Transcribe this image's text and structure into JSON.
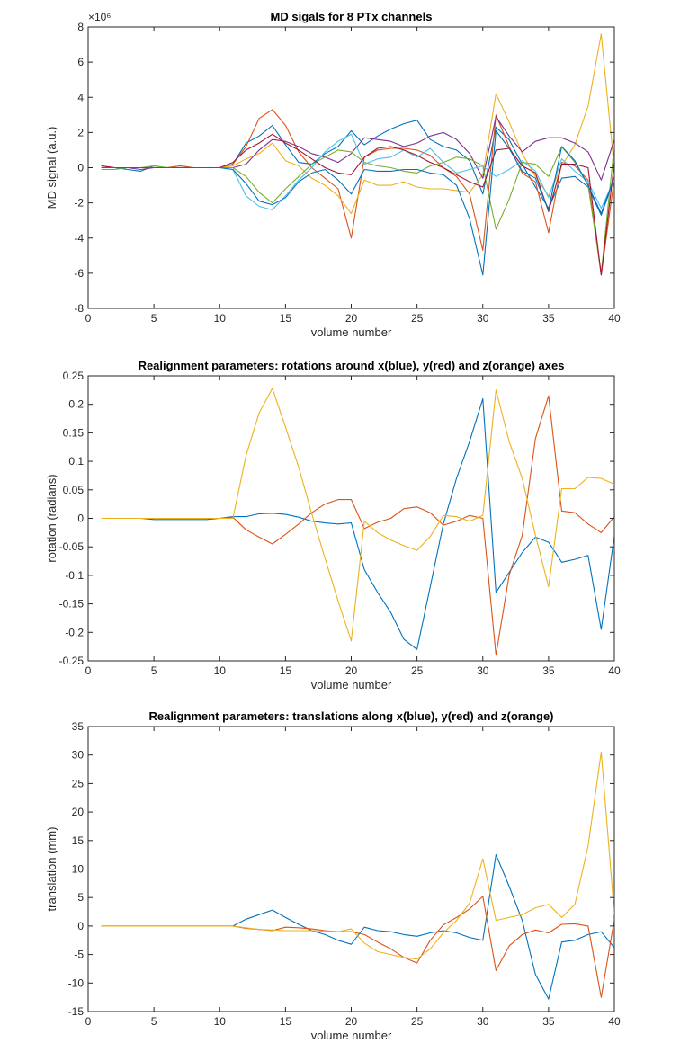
{
  "chart_data": [
    {
      "type": "line",
      "title": "MD sigals for 8 PTx channels",
      "xlabel": "volume number",
      "ylabel": "MD signal (a.u.)",
      "y_exponent_label": "×10⁶",
      "xlim": [
        0,
        40
      ],
      "ylim": [
        -8,
        8
      ],
      "xticks": [
        "0",
        "5",
        "10",
        "15",
        "20",
        "25",
        "30",
        "35",
        "40"
      ],
      "yticks": [
        "-8",
        "-6",
        "-4",
        "-2",
        "0",
        "2",
        "4",
        "6",
        "8"
      ],
      "grid": false,
      "x": [
        1,
        2,
        3,
        4,
        5,
        6,
        7,
        8,
        9,
        10,
        11,
        12,
        13,
        14,
        15,
        16,
        17,
        18,
        19,
        20,
        21,
        22,
        23,
        24,
        25,
        26,
        27,
        28,
        29,
        30,
        31,
        32,
        33,
        34,
        35,
        36,
        37,
        38,
        39,
        40
      ],
      "series": [
        {
          "color": "#0072BD",
          "values": [
            0.1,
            0.0,
            -0.1,
            -0.2,
            0.1,
            0.0,
            0.1,
            0.0,
            0.0,
            0.0,
            0.2,
            1.4,
            1.8,
            2.4,
            1.3,
            0.3,
            0.2,
            0.8,
            1.2,
            2.1,
            1.3,
            1.8,
            2.2,
            2.5,
            2.7,
            1.6,
            1.2,
            1.0,
            0.4,
            -1.5,
            2.3,
            1.6,
            0.2,
            -1.1,
            -2.3,
            -0.6,
            -0.5,
            -1.1,
            -2.7,
            -0.6
          ]
        },
        {
          "color": "#D95319",
          "values": [
            0.1,
            0.0,
            0.0,
            0.0,
            0.0,
            0.0,
            0.1,
            0.0,
            0.0,
            0.0,
            0.2,
            1.2,
            2.8,
            3.3,
            2.4,
            0.9,
            0.0,
            -0.6,
            -1.2,
            -4.0,
            0.6,
            1.0,
            1.1,
            1.1,
            1.0,
            0.7,
            0.0,
            -0.5,
            -1.5,
            -4.7,
            3.0,
            1.2,
            -0.3,
            -0.8,
            -3.7,
            0.3,
            0.1,
            -0.7,
            -6.1,
            -0.6
          ]
        },
        {
          "color": "#EDB120",
          "values": [
            0.0,
            0.0,
            0.0,
            0.0,
            0.1,
            0.0,
            0.0,
            0.0,
            0.0,
            0.0,
            0.1,
            0.5,
            0.8,
            1.4,
            0.4,
            0.1,
            -0.6,
            -1.0,
            -1.6,
            -2.6,
            -0.7,
            -1.0,
            -1.0,
            -0.8,
            -1.1,
            -1.2,
            -1.2,
            -1.3,
            -1.4,
            -0.4,
            4.2,
            2.6,
            0.8,
            -0.5,
            -1.6,
            0.1,
            1.3,
            3.5,
            7.6,
            -0.1
          ]
        },
        {
          "color": "#7E2F8E",
          "values": [
            0.0,
            0.0,
            0.0,
            -0.1,
            0.0,
            0.0,
            0.0,
            0.0,
            0.0,
            0.0,
            0.0,
            0.2,
            1.0,
            1.6,
            1.5,
            1.2,
            0.8,
            0.6,
            0.3,
            0.8,
            1.7,
            1.6,
            1.5,
            1.2,
            1.4,
            1.8,
            2.0,
            1.6,
            0.8,
            -0.6,
            2.9,
            1.8,
            0.9,
            1.5,
            1.7,
            1.7,
            1.4,
            0.9,
            -0.7,
            1.6
          ]
        },
        {
          "color": "#77AC30",
          "values": [
            -0.1,
            -0.1,
            0.0,
            0.0,
            0.1,
            0.0,
            0.0,
            0.0,
            0.0,
            0.0,
            0.0,
            -0.5,
            -1.4,
            -2.0,
            -1.2,
            -0.5,
            0.2,
            0.6,
            1.0,
            0.9,
            0.3,
            0.1,
            0.0,
            -0.2,
            -0.3,
            0.1,
            0.3,
            0.6,
            0.5,
            0.1,
            -3.5,
            -1.8,
            0.3,
            0.2,
            -0.5,
            1.2,
            0.3,
            -1.0,
            -6.0,
            1.3
          ]
        },
        {
          "color": "#4DBEEE",
          "values": [
            0.0,
            0.0,
            0.0,
            0.0,
            0.0,
            0.0,
            0.0,
            0.0,
            0.0,
            0.0,
            -0.1,
            -1.6,
            -2.2,
            -2.4,
            -1.6,
            -0.7,
            0.0,
            0.9,
            1.5,
            1.9,
            0.2,
            0.5,
            0.6,
            1.0,
            0.6,
            1.1,
            0.3,
            -0.3,
            -0.1,
            0.1,
            -0.5,
            -0.1,
            0.4,
            -0.2,
            -1.7,
            0.5,
            -0.2,
            -0.8,
            -2.3,
            -0.7
          ]
        },
        {
          "color": "#A2142F",
          "values": [
            0.1,
            0.0,
            0.0,
            0.0,
            0.0,
            0.0,
            0.0,
            0.0,
            0.0,
            0.0,
            0.3,
            1.0,
            1.4,
            1.9,
            1.4,
            1.0,
            0.5,
            0.0,
            -0.3,
            -0.4,
            0.6,
            1.1,
            1.2,
            1.0,
            0.7,
            0.3,
            0.0,
            -0.4,
            -0.8,
            -1.1,
            1.0,
            1.1,
            0.1,
            -0.3,
            -2.5,
            0.2,
            0.2,
            0.0,
            -6.1,
            0.3
          ]
        },
        {
          "color": "#0072BD",
          "values": [
            0.0,
            0.0,
            0.0,
            0.0,
            0.0,
            0.0,
            0.0,
            0.0,
            0.0,
            0.0,
            -0.1,
            -0.9,
            -1.9,
            -2.1,
            -1.7,
            -0.8,
            -0.3,
            -0.1,
            -0.7,
            -1.5,
            -0.1,
            -0.2,
            -0.2,
            -0.1,
            -0.1,
            -0.3,
            -0.4,
            -1.0,
            -2.9,
            -6.1,
            2.1,
            1.1,
            -0.2,
            -0.6,
            -2.4,
            1.2,
            0.4,
            -1.0,
            -2.6,
            -0.5
          ]
        }
      ]
    },
    {
      "type": "line",
      "title": "Realignment parameters: rotations around x(blue), y(red) and z(orange) axes",
      "xlabel": "volume number",
      "ylabel": "rotation (radians)",
      "xlim": [
        0,
        40
      ],
      "ylim": [
        -0.25,
        0.25
      ],
      "xticks": [
        "0",
        "5",
        "10",
        "15",
        "20",
        "25",
        "30",
        "35",
        "40"
      ],
      "yticks": [
        "-0.25",
        "-0.2",
        "-0.15",
        "-0.1",
        "-0.05",
        "0",
        "0.05",
        "0.1",
        "0.15",
        "0.2",
        "0.25"
      ],
      "grid": false,
      "x": [
        1,
        2,
        3,
        4,
        5,
        6,
        7,
        8,
        9,
        10,
        11,
        12,
        13,
        14,
        15,
        16,
        17,
        18,
        19,
        20,
        21,
        22,
        23,
        24,
        25,
        26,
        27,
        28,
        29,
        30,
        31,
        32,
        33,
        34,
        35,
        36,
        37,
        38,
        39,
        40
      ],
      "series": [
        {
          "color": "#0072BD",
          "values": [
            0,
            0,
            0,
            0,
            -0.002,
            -0.002,
            -0.002,
            -0.002,
            -0.002,
            0,
            0.003,
            0.003,
            0.008,
            0.009,
            0.007,
            0.002,
            -0.005,
            -0.008,
            -0.01,
            -0.008,
            -0.09,
            -0.13,
            -0.165,
            -0.212,
            -0.23,
            -0.12,
            -0.01,
            0.07,
            0.135,
            0.21,
            -0.13,
            -0.095,
            -0.06,
            -0.033,
            -0.042,
            -0.077,
            -0.072,
            -0.065,
            -0.195,
            -0.03
          ]
        },
        {
          "color": "#D95319",
          "values": [
            0,
            0,
            0,
            0,
            0,
            0,
            0,
            0,
            0,
            0,
            0.002,
            -0.02,
            -0.033,
            -0.045,
            -0.028,
            -0.01,
            0.01,
            0.025,
            0.033,
            0.033,
            -0.018,
            -0.007,
            0,
            0.017,
            0.02,
            0.01,
            -0.012,
            -0.005,
            0.005,
            0,
            -0.24,
            -0.1,
            -0.03,
            0.14,
            0.215,
            0.013,
            0.01,
            -0.01,
            -0.025,
            0.003
          ]
        },
        {
          "color": "#EDB120",
          "values": [
            0,
            0,
            0,
            0,
            0,
            0,
            0,
            0,
            0,
            0,
            0,
            0.11,
            0.185,
            0.228,
            0.16,
            0.09,
            0.008,
            -0.07,
            -0.145,
            -0.215,
            -0.005,
            -0.025,
            -0.038,
            -0.048,
            -0.056,
            -0.032,
            0.005,
            0.003,
            -0.005,
            0.005,
            0.225,
            0.135,
            0.07,
            -0.03,
            -0.12,
            0.052,
            0.052,
            0.072,
            0.07,
            0.06
          ]
        }
      ]
    },
    {
      "type": "line",
      "title": "Realignment parameters: translations along x(blue), y(red) and z(orange)",
      "xlabel": "volume number",
      "ylabel": "translation (mm)",
      "xlim": [
        0,
        40
      ],
      "ylim": [
        -15,
        35
      ],
      "xticks": [
        "0",
        "5",
        "10",
        "15",
        "20",
        "25",
        "30",
        "35",
        "40"
      ],
      "yticks": [
        "-15",
        "-10",
        "-5",
        "0",
        "5",
        "10",
        "15",
        "20",
        "25",
        "30",
        "35"
      ],
      "grid": false,
      "x": [
        1,
        2,
        3,
        4,
        5,
        6,
        7,
        8,
        9,
        10,
        11,
        12,
        13,
        14,
        15,
        16,
        17,
        18,
        19,
        20,
        21,
        22,
        23,
        24,
        25,
        26,
        27,
        28,
        29,
        30,
        31,
        32,
        33,
        34,
        35,
        36,
        37,
        38,
        39,
        40
      ],
      "series": [
        {
          "color": "#0072BD",
          "values": [
            0,
            0,
            0,
            0,
            0,
            0,
            0,
            0,
            0,
            0,
            0,
            1.2,
            2.0,
            2.8,
            1.5,
            0.3,
            -0.8,
            -1.5,
            -2.5,
            -3.2,
            -0.2,
            -0.8,
            -1.0,
            -1.5,
            -1.8,
            -1.2,
            -0.8,
            -1.2,
            -2.0,
            -2.5,
            12.5,
            7.0,
            1.0,
            -8.5,
            -12.8,
            -2.8,
            -2.5,
            -1.5,
            -1.0,
            -3.8
          ]
        },
        {
          "color": "#D95319",
          "values": [
            0,
            0,
            0,
            0,
            0,
            0,
            0,
            0,
            0,
            0,
            0,
            -0.4,
            -0.6,
            -0.8,
            -0.2,
            -0.3,
            -0.5,
            -0.8,
            -1.0,
            -1.0,
            -1.5,
            -2.8,
            -4.0,
            -5.5,
            -6.5,
            -2.5,
            0.2,
            1.5,
            3.0,
            5.2,
            -7.8,
            -3.5,
            -1.5,
            -0.7,
            -1.2,
            0.3,
            0.4,
            0,
            -12.5,
            1.2
          ]
        },
        {
          "color": "#EDB120",
          "values": [
            0,
            0,
            0,
            0,
            0,
            0,
            0,
            0,
            0,
            0,
            0,
            -0.3,
            -0.6,
            -0.7,
            -0.8,
            -0.8,
            -0.8,
            -0.9,
            -1.0,
            -0.5,
            -3.0,
            -4.5,
            -5.0,
            -5.5,
            -5.8,
            -4.0,
            -1.2,
            1.0,
            4.0,
            11.8,
            1.0,
            1.5,
            2.0,
            3.2,
            3.8,
            1.5,
            3.8,
            14.0,
            30.5,
            2.0
          ]
        }
      ]
    }
  ]
}
